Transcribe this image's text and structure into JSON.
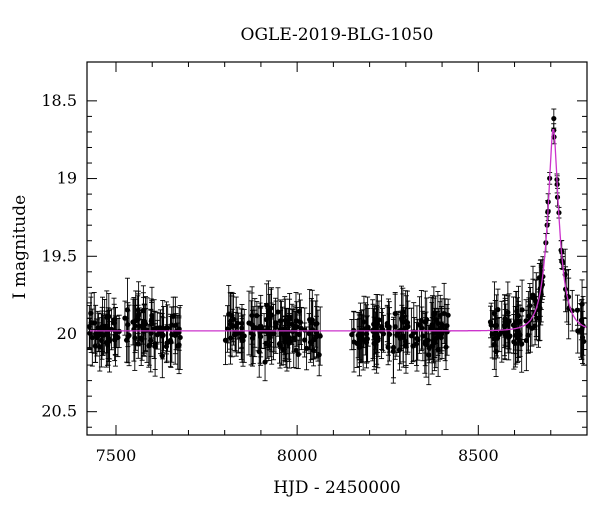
{
  "chart_data": {
    "type": "scatter",
    "title": "OGLE-2019-BLG-1050",
    "xlabel": "HJD - 2450000",
    "ylabel": "I magnitude",
    "xlim": [
      7420,
      8800
    ],
    "ylim": [
      20.65,
      18.25
    ],
    "y_inverted": true,
    "x_ticks": [
      7500,
      8000,
      8500
    ],
    "x_tick_labels": [
      "7500",
      "8000",
      "8500"
    ],
    "y_ticks": [
      18.5,
      19,
      19.5,
      20,
      20.5
    ],
    "y_tick_labels": [
      "18.5",
      "19",
      "19.5",
      "20",
      "20.5"
    ],
    "grid": false,
    "colors": {
      "points": "#000000",
      "model": "#cc33cc"
    },
    "model": {
      "baseline": 19.98,
      "peak_time": 8707,
      "peak_mag": 18.68,
      "time_scale": 33
    },
    "observing_seasons": [
      {
        "x_range": [
          7425,
          7680
        ],
        "n": 110
      },
      {
        "x_range": [
          7800,
          8065
        ],
        "n": 120
      },
      {
        "x_range": [
          8150,
          8420
        ],
        "n": 120
      },
      {
        "x_range": [
          8530,
          8800
        ],
        "n": 110
      }
    ]
  }
}
